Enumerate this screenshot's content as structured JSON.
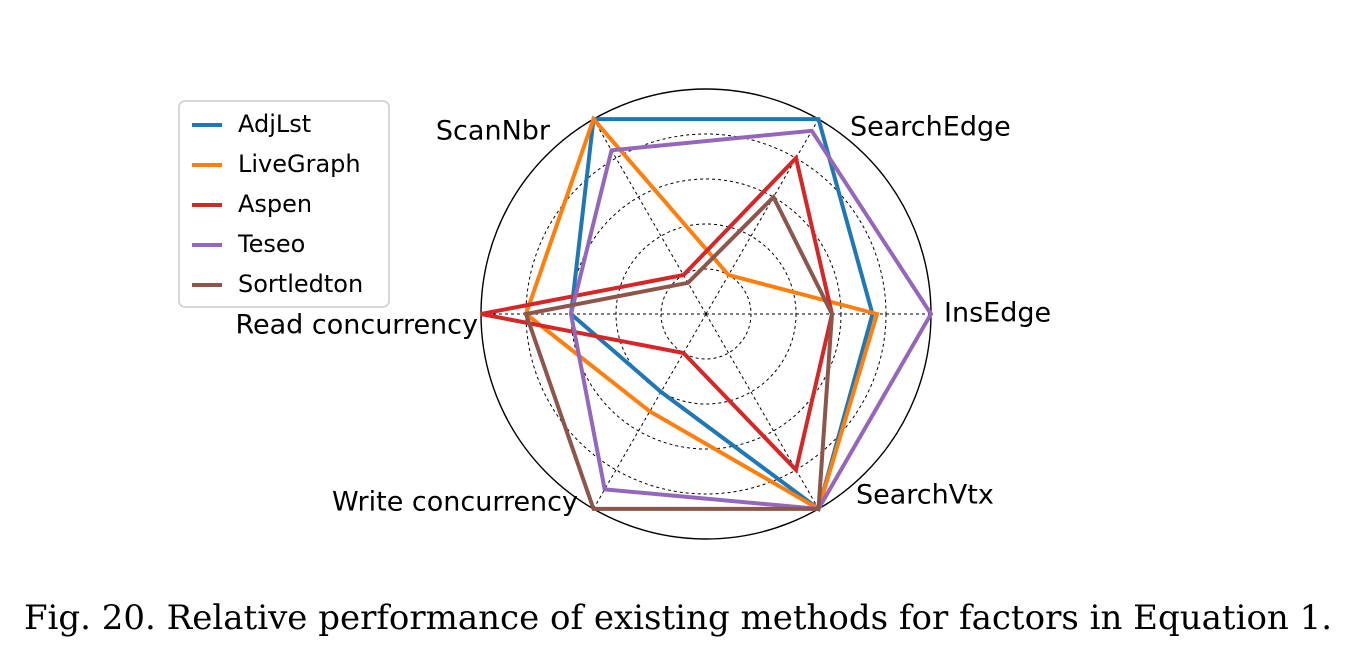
{
  "caption": "Fig. 20.  Relative performance of existing methods for factors in Equation 1.",
  "chart_data": {
    "type": "radar",
    "axes": [
      "InsEdge",
      "SearchEdge",
      "ScanNbr",
      "Read concurrency",
      "Write concurrency",
      "SearchVtx"
    ],
    "rlim": [
      0,
      5
    ],
    "grid": true,
    "legend_position": "top-left",
    "series": [
      {
        "name": "AdjLst",
        "color": "#1f77b4",
        "values": [
          3.7,
          5.0,
          5.0,
          3.0,
          2.0,
          5.0
        ]
      },
      {
        "name": "LiveGraph",
        "color": "#ff7f0e",
        "values": [
          3.8,
          1.0,
          5.0,
          4.0,
          2.5,
          5.0
        ]
      },
      {
        "name": "Aspen",
        "color": "#d62728",
        "values": [
          2.8,
          4.0,
          1.0,
          5.0,
          1.0,
          4.0
        ]
      },
      {
        "name": "Teseo",
        "color": "#9467bd",
        "values": [
          5.0,
          4.7,
          4.2,
          3.0,
          4.5,
          5.0
        ]
      },
      {
        "name": "Sortledton",
        "color": "#8c564b",
        "values": [
          2.8,
          3.0,
          0.8,
          4.0,
          5.0,
          5.0
        ]
      }
    ]
  }
}
